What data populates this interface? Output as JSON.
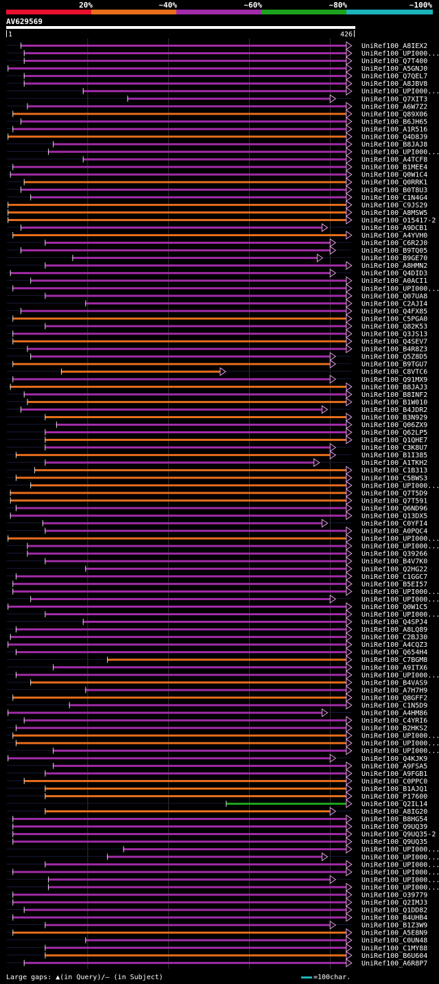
{
  "header": {
    "scale_labels": [
      "20%",
      "~40%",
      "~60%",
      "~80%",
      "~100%"
    ],
    "scale_colors": [
      "#e8102c",
      "#e86e1c",
      "#a22ca8",
      "#1ca21c",
      "#1cb4bc"
    ],
    "query_id": "AV629569",
    "ruler_start": "1",
    "ruler_end": "426"
  },
  "legend": {
    "gaps_text": "Large gaps: ▲(in Query)/– (in Subject)",
    "scale_text": "=100char."
  },
  "chart_data": {
    "type": "alignment",
    "query_length": 426,
    "identity_colors": {
      "40": "#e86e1c",
      "60": "#a22ca8",
      "80": "#1ca21c"
    },
    "hits": [
      {
        "id": "UniRef100_A8IEX2",
        "identity": 60,
        "start": 18,
        "end": 426
      },
      {
        "id": "UniRef100_UPI000...",
        "identity": 60,
        "start": 22,
        "end": 426
      },
      {
        "id": "UniRef100_Q7T400",
        "identity": 60,
        "start": 22,
        "end": 426
      },
      {
        "id": "UniRef100_A5GNJ0",
        "identity": 60,
        "start": 2,
        "end": 426
      },
      {
        "id": "UniRef100_Q7QEL7",
        "identity": 60,
        "start": 22,
        "end": 426
      },
      {
        "id": "UniRef100_A8JBV8",
        "identity": 60,
        "start": 22,
        "end": 426
      },
      {
        "id": "UniRef100_UPI000...",
        "identity": 60,
        "start": 95,
        "end": 426
      },
      {
        "id": "UniRef100_Q7XIT3",
        "identity": 60,
        "start": 150,
        "end": 406
      },
      {
        "id": "UniRef100_A6W7Z2",
        "identity": 60,
        "start": 26,
        "end": 426
      },
      {
        "id": "UniRef100_Q89X06",
        "identity": 40,
        "start": 8,
        "end": 426
      },
      {
        "id": "UniRef100_B6JH65",
        "identity": 60,
        "start": 18,
        "end": 426
      },
      {
        "id": "UniRef100_A1R516",
        "identity": 60,
        "start": 8,
        "end": 426
      },
      {
        "id": "UniRef100_Q4D8J9",
        "identity": 40,
        "start": 2,
        "end": 426
      },
      {
        "id": "UniRef100_B8JAJ8",
        "identity": 60,
        "start": 58,
        "end": 426
      },
      {
        "id": "UniRef100_UPI000...",
        "identity": 60,
        "start": 52,
        "end": 426
      },
      {
        "id": "UniRef100_A4TCF8",
        "identity": 60,
        "start": 95,
        "end": 426
      },
      {
        "id": "UniRef100_B1MEE4",
        "identity": 60,
        "start": 8,
        "end": 426
      },
      {
        "id": "UniRef100_Q0W1C4",
        "identity": 60,
        "start": 5,
        "end": 426
      },
      {
        "id": "UniRef100_Q0RRK1",
        "identity": 40,
        "start": 22,
        "end": 426
      },
      {
        "id": "UniRef100_B0T8U3",
        "identity": 60,
        "start": 18,
        "end": 426
      },
      {
        "id": "UniRef100_C1N4G4",
        "identity": 60,
        "start": 30,
        "end": 426
      },
      {
        "id": "UniRef100_C9JS29",
        "identity": 40,
        "start": 2,
        "end": 426
      },
      {
        "id": "UniRef100_A8MSW5",
        "identity": 40,
        "start": 2,
        "end": 426
      },
      {
        "id": "UniRef100_O15417-2",
        "identity": 40,
        "start": 2,
        "end": 426
      },
      {
        "id": "UniRef100_A9DCB1",
        "identity": 60,
        "start": 18,
        "end": 396
      },
      {
        "id": "UniRef100_A4YVH0",
        "identity": 40,
        "start": 8,
        "end": 426
      },
      {
        "id": "UniRef100_C6R2J0",
        "identity": 60,
        "start": 48,
        "end": 406
      },
      {
        "id": "UniRef100_B9TQ05",
        "identity": 60,
        "start": 18,
        "end": 406
      },
      {
        "id": "UniRef100_B9GE70",
        "identity": 60,
        "start": 82,
        "end": 390
      },
      {
        "id": "UniRef100_A8HMN2",
        "identity": 60,
        "start": 48,
        "end": 426
      },
      {
        "id": "UniRef100_Q4DID3",
        "identity": 60,
        "start": 5,
        "end": 406
      },
      {
        "id": "UniRef100_A0ACI1",
        "identity": 60,
        "start": 30,
        "end": 426
      },
      {
        "id": "UniRef100_UPI000...",
        "identity": 60,
        "start": 8,
        "end": 426
      },
      {
        "id": "UniRef100_Q07UA8",
        "identity": 60,
        "start": 48,
        "end": 426
      },
      {
        "id": "UniRef100_C2AJI4",
        "identity": 60,
        "start": 98,
        "end": 426
      },
      {
        "id": "UniRef100_Q4FX85",
        "identity": 60,
        "start": 18,
        "end": 426
      },
      {
        "id": "UniRef100_C5PGA0",
        "identity": 40,
        "start": 8,
        "end": 426
      },
      {
        "id": "UniRef100_Q82K53",
        "identity": 60,
        "start": 48,
        "end": 426
      },
      {
        "id": "UniRef100_Q3JS13",
        "identity": 60,
        "start": 8,
        "end": 426
      },
      {
        "id": "UniRef100_Q4SEV7",
        "identity": 40,
        "start": 8,
        "end": 426
      },
      {
        "id": "UniRef100_B4R8Z3",
        "identity": 60,
        "start": 26,
        "end": 426
      },
      {
        "id": "UniRef100_Q5Z8D5",
        "identity": 60,
        "start": 30,
        "end": 406
      },
      {
        "id": "UniRef100_B9TGU7",
        "identity": 40,
        "start": 8,
        "end": 406
      },
      {
        "id": "UniRef100_C8VTC6",
        "identity": 40,
        "start": 68,
        "end": 270
      },
      {
        "id": "UniRef100_Q91MX9",
        "identity": 60,
        "start": 8,
        "end": 406
      },
      {
        "id": "UniRef100_B8JAJ3",
        "identity": 40,
        "start": 5,
        "end": 426
      },
      {
        "id": "UniRef100_B8INF2",
        "identity": 60,
        "start": 22,
        "end": 426
      },
      {
        "id": "UniRef100_B1W010",
        "identity": 40,
        "start": 26,
        "end": 426
      },
      {
        "id": "UniRef100_B4JDR2",
        "identity": 60,
        "start": 18,
        "end": 396
      },
      {
        "id": "UniRef100_B3N929",
        "identity": 40,
        "start": 48,
        "end": 426
      },
      {
        "id": "UniRef100_Q06ZX9",
        "identity": 60,
        "start": 62,
        "end": 426
      },
      {
        "id": "UniRef100_Q62LP5",
        "identity": 60,
        "start": 48,
        "end": 426
      },
      {
        "id": "UniRef100_Q1QHE7",
        "identity": 40,
        "start": 48,
        "end": 426
      },
      {
        "id": "UniRef100_C3K8U7",
        "identity": 60,
        "start": 48,
        "end": 406
      },
      {
        "id": "UniRef100_B1I385",
        "identity": 40,
        "start": 12,
        "end": 406
      },
      {
        "id": "UniRef100_A1TKH2",
        "identity": 60,
        "start": 48,
        "end": 386
      },
      {
        "id": "UniRef100_C1B313",
        "identity": 40,
        "start": 35,
        "end": 426
      },
      {
        "id": "UniRef100_C5BWS3",
        "identity": 40,
        "start": 12,
        "end": 426
      },
      {
        "id": "UniRef100_UPI000...",
        "identity": 40,
        "start": 30,
        "end": 426
      },
      {
        "id": "UniRef100_Q7T5D9",
        "identity": 40,
        "start": 5,
        "end": 426
      },
      {
        "id": "UniRef100_Q7T591",
        "identity": 40,
        "start": 5,
        "end": 426
      },
      {
        "id": "UniRef100_Q6ND96",
        "identity": 60,
        "start": 12,
        "end": 426
      },
      {
        "id": "UniRef100_Q13DX5",
        "identity": 60,
        "start": 5,
        "end": 426
      },
      {
        "id": "UniRef100_C0YFI4",
        "identity": 60,
        "start": 45,
        "end": 396
      },
      {
        "id": "UniRef100_A0PQC4",
        "identity": 60,
        "start": 48,
        "end": 426
      },
      {
        "id": "UniRef100_UPI000...",
        "identity": 40,
        "start": 2,
        "end": 426
      },
      {
        "id": "UniRef100_UPI000...",
        "identity": 60,
        "start": 26,
        "end": 426
      },
      {
        "id": "UniRef100_Q39266",
        "identity": 60,
        "start": 26,
        "end": 426
      },
      {
        "id": "UniRef100_B4V7K0",
        "identity": 60,
        "start": 48,
        "end": 426
      },
      {
        "id": "UniRef100_Q2HG22",
        "identity": 60,
        "start": 98,
        "end": 426
      },
      {
        "id": "UniRef100_C1GGC7",
        "identity": 60,
        "start": 12,
        "end": 426
      },
      {
        "id": "UniRef100_B5EI57",
        "identity": 60,
        "start": 8,
        "end": 426
      },
      {
        "id": "UniRef100_UPI000...",
        "identity": 60,
        "start": 8,
        "end": 426
      },
      {
        "id": "UniRef100_UPI000...",
        "identity": 60,
        "start": 30,
        "end": 406
      },
      {
        "id": "UniRef100_Q0W1C5",
        "identity": 60,
        "start": 2,
        "end": 426
      },
      {
        "id": "UniRef100_UPI000...",
        "identity": 60,
        "start": 48,
        "end": 426
      },
      {
        "id": "UniRef100_Q4SPJ4",
        "identity": 60,
        "start": 95,
        "end": 426
      },
      {
        "id": "UniRef100_A8LQ89",
        "identity": 60,
        "start": 12,
        "end": 426
      },
      {
        "id": "UniRef100_C2BJ30",
        "identity": 60,
        "start": 5,
        "end": 426
      },
      {
        "id": "UniRef100_A4CQZ3",
        "identity": 60,
        "start": 2,
        "end": 426
      },
      {
        "id": "UniRef100_Q654H4",
        "identity": 60,
        "start": 12,
        "end": 426
      },
      {
        "id": "UniRef100_C7BGM8",
        "identity": 40,
        "start": 125,
        "end": 426
      },
      {
        "id": "UniRef100_A9ITX6",
        "identity": 60,
        "start": 58,
        "end": 426
      },
      {
        "id": "UniRef100_UPI000...",
        "identity": 60,
        "start": 12,
        "end": 426
      },
      {
        "id": "UniRef100_B4VAS9",
        "identity": 40,
        "start": 30,
        "end": 426
      },
      {
        "id": "UniRef100_A7H7H9",
        "identity": 60,
        "start": 98,
        "end": 426
      },
      {
        "id": "UniRef100_Q8GFF2",
        "identity": 40,
        "start": 8,
        "end": 426
      },
      {
        "id": "UniRef100_C1N5D9",
        "identity": 60,
        "start": 78,
        "end": 426
      },
      {
        "id": "UniRef100_A4HM86",
        "identity": 60,
        "start": 2,
        "end": 396
      },
      {
        "id": "UniRef100_C4YRI6",
        "identity": 60,
        "start": 22,
        "end": 426
      },
      {
        "id": "UniRef100_B2HKS2",
        "identity": 60,
        "start": 12,
        "end": 426
      },
      {
        "id": "UniRef100_UPI000...",
        "identity": 40,
        "start": 8,
        "end": 426
      },
      {
        "id": "UniRef100_UPI000...",
        "identity": 40,
        "start": 12,
        "end": 426
      },
      {
        "id": "UniRef100_UPI000...",
        "identity": 60,
        "start": 58,
        "end": 426
      },
      {
        "id": "UniRef100_Q4KJK9",
        "identity": 60,
        "start": 2,
        "end": 406
      },
      {
        "id": "UniRef100_A9FSA5",
        "identity": 60,
        "start": 58,
        "end": 426
      },
      {
        "id": "UniRef100_A9FGB1",
        "identity": 60,
        "start": 48,
        "end": 426
      },
      {
        "id": "UniRef100_C0PPC0",
        "identity": 40,
        "start": 22,
        "end": 426
      },
      {
        "id": "UniRef100_B1AJQ1",
        "identity": 40,
        "start": 48,
        "end": 426
      },
      {
        "id": "UniRef100_P17600",
        "identity": 40,
        "start": 48,
        "end": 426
      },
      {
        "id": "UniRef100_Q2IL14",
        "identity": 80,
        "start": 272,
        "end": 426
      },
      {
        "id": "UniRef100_A8IG20",
        "identity": 40,
        "start": 48,
        "end": 406
      },
      {
        "id": "UniRef100_B8HG54",
        "identity": 60,
        "start": 8,
        "end": 426
      },
      {
        "id": "UniRef100_Q9UQ39",
        "identity": 60,
        "start": 8,
        "end": 426
      },
      {
        "id": "UniRef100_Q9UQ35-2",
        "identity": 60,
        "start": 8,
        "end": 426
      },
      {
        "id": "UniRef100_Q9UQ35",
        "identity": 60,
        "start": 8,
        "end": 426
      },
      {
        "id": "UniRef100_UPI000...",
        "identity": 60,
        "start": 145,
        "end": 426
      },
      {
        "id": "UniRef100_UPI000...",
        "identity": 60,
        "start": 125,
        "end": 396
      },
      {
        "id": "UniRef100_UPI000...",
        "identity": 60,
        "start": 48,
        "end": 426
      },
      {
        "id": "UniRef100_UPI000...",
        "identity": 60,
        "start": 8,
        "end": 426
      },
      {
        "id": "UniRef100_UPI000...",
        "identity": 60,
        "start": 52,
        "end": 406
      },
      {
        "id": "UniRef100_UPI000...",
        "identity": 60,
        "start": 52,
        "end": 426
      },
      {
        "id": "UniRef100_O39779",
        "identity": 60,
        "start": 8,
        "end": 426
      },
      {
        "id": "UniRef100_Q2IMJ3",
        "identity": 60,
        "start": 8,
        "end": 426
      },
      {
        "id": "UniRef100_Q1DD82",
        "identity": 60,
        "start": 22,
        "end": 426
      },
      {
        "id": "UniRef100_B4UHB4",
        "identity": 60,
        "start": 8,
        "end": 426
      },
      {
        "id": "UniRef100_B1Z3W9",
        "identity": 60,
        "start": 48,
        "end": 406
      },
      {
        "id": "UniRef100_A5E8N9",
        "identity": 40,
        "start": 8,
        "end": 426
      },
      {
        "id": "UniRef100_C0UN48",
        "identity": 60,
        "start": 98,
        "end": 426
      },
      {
        "id": "UniRef100_C1MY88",
        "identity": 60,
        "start": 48,
        "end": 426
      },
      {
        "id": "UniRef100_B6U604",
        "identity": 40,
        "start": 48,
        "end": 426
      },
      {
        "id": "UniRef100_A6R8P7",
        "identity": 60,
        "start": 22,
        "end": 426
      }
    ]
  }
}
